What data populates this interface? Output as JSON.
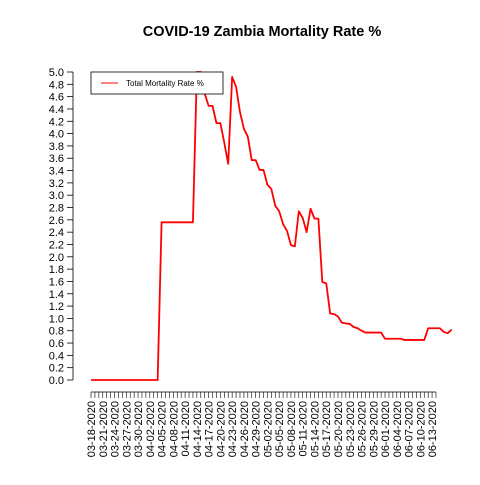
{
  "chart_data": {
    "type": "line",
    "title": "COVID-19 Zambia Mortality Rate %",
    "xlabel": "",
    "ylabel": "",
    "x_start_date": "03-18-2020",
    "x_end_date": "06-14-2020",
    "x_tick_labels": [
      "03-18-2020",
      "03-21-2020",
      "03-24-2020",
      "03-27-2020",
      "03-30-2020",
      "04-02-2020",
      "04-05-2020",
      "04-08-2020",
      "04-11-2020",
      "04-14-2020",
      "04-17-2020",
      "04-20-2020",
      "04-23-2020",
      "04-26-2020",
      "04-29-2020",
      "05-02-2020",
      "05-05-2020",
      "05-08-2020",
      "05-11-2020",
      "05-14-2020",
      "05-17-2020",
      "05-20-2020",
      "05-23-2020",
      "05-26-2020",
      "05-29-2020",
      "06-01-2020",
      "06-04-2020",
      "06-07-2020",
      "06-10-2020",
      "06-13-2020"
    ],
    "ylim": [
      0,
      5
    ],
    "y_ticks": [
      0.0,
      0.2,
      0.4,
      0.6,
      0.8,
      1.0,
      1.2,
      1.4,
      1.6,
      1.8,
      2.0,
      2.2,
      2.4,
      2.6,
      2.8,
      3.0,
      3.2,
      3.4,
      3.6,
      3.8,
      4.0,
      4.2,
      4.4,
      4.6,
      4.8,
      5.0
    ],
    "grid": false,
    "legend": "top-left",
    "series": [
      {
        "name": "Total Mortality Rate %",
        "color": "#ff0000",
        "values": [
          0,
          0,
          0,
          0,
          0,
          0,
          0,
          0,
          0,
          0,
          0,
          0,
          0,
          0,
          0,
          0,
          0,
          0,
          2.56,
          2.56,
          2.56,
          2.56,
          2.56,
          2.56,
          2.56,
          2.56,
          2.56,
          5.0,
          5.0,
          4.65,
          4.45,
          4.45,
          4.17,
          4.17,
          3.85,
          3.51,
          4.92,
          4.76,
          4.35,
          4.08,
          3.95,
          3.57,
          3.57,
          3.41,
          3.41,
          3.17,
          3.1,
          2.83,
          2.74,
          2.53,
          2.42,
          2.19,
          2.17,
          2.74,
          2.63,
          2.4,
          2.78,
          2.62,
          2.62,
          1.59,
          1.57,
          1.08,
          1.07,
          1.03,
          0.93,
          0.92,
          0.91,
          0.86,
          0.84,
          0.8,
          0.77,
          0.77,
          0.77,
          0.77,
          0.77,
          0.67,
          0.67,
          0.67,
          0.67,
          0.67,
          0.65,
          0.65,
          0.65,
          0.65,
          0.65,
          0.65,
          0.84,
          0.84,
          0.84,
          0.84,
          0.78,
          0.76,
          0.82
        ]
      }
    ]
  }
}
